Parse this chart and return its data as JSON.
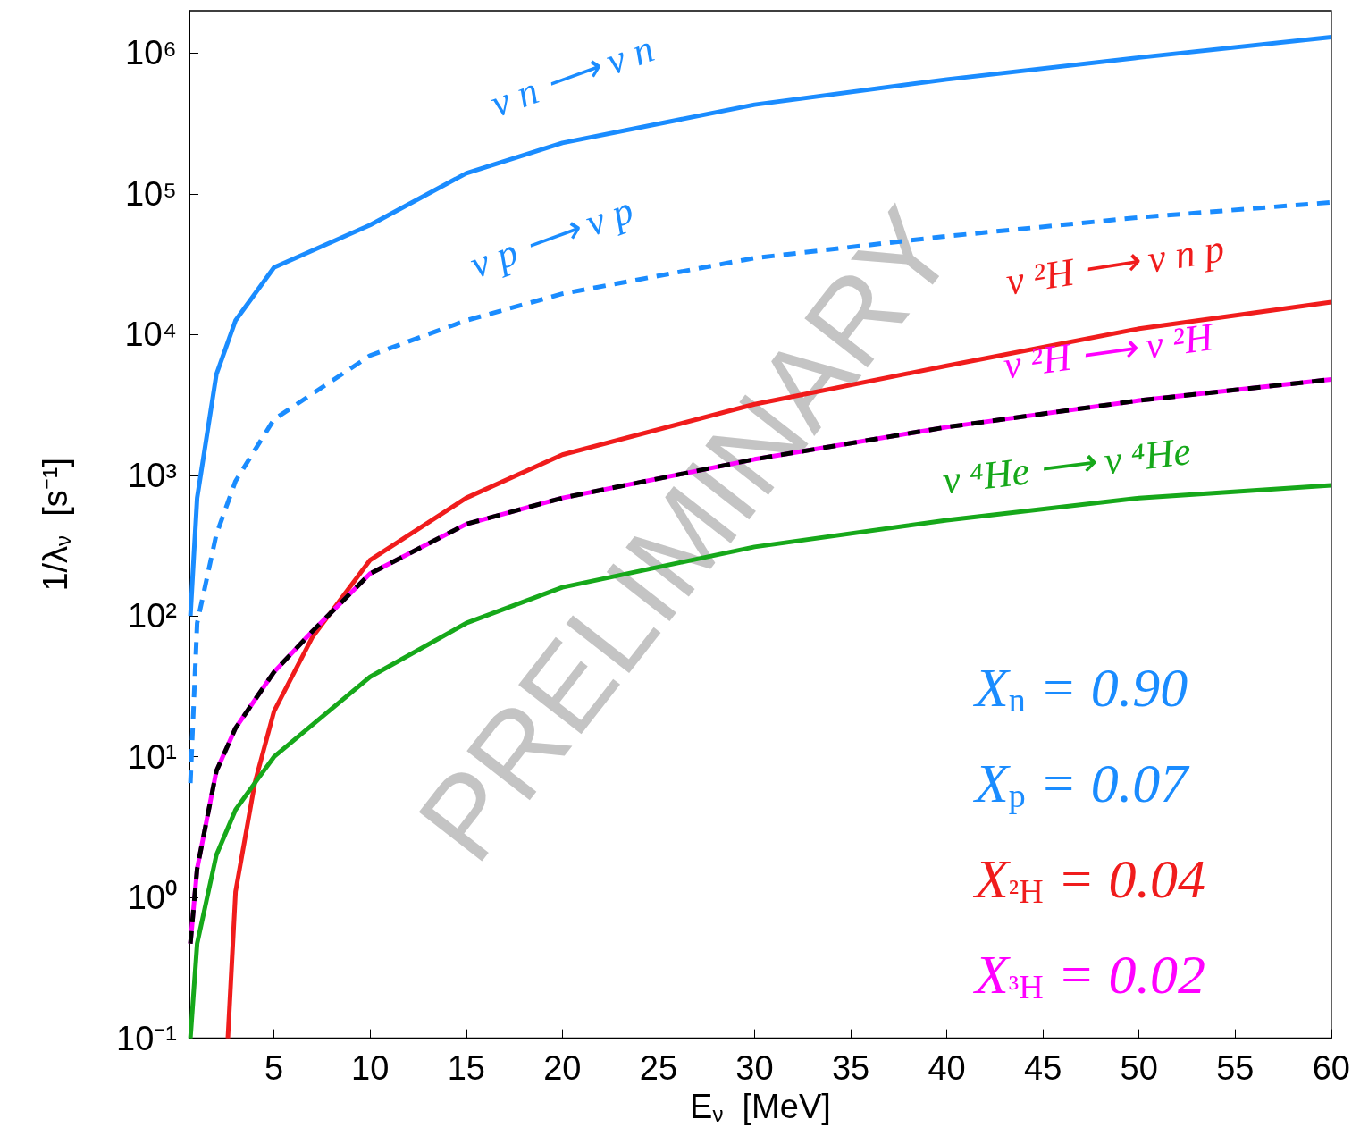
{
  "chart_data": {
    "type": "line",
    "xlabel": "E$_{ν}$  [MeV]",
    "ylabel": "1/λ$_{ν}$  [s⁻¹]",
    "log": "y",
    "grid": false,
    "legend": false,
    "marker": "none",
    "xlim": [
      0.6,
      60
    ],
    "xticks": [
      5,
      10,
      15,
      20,
      25,
      30,
      35,
      40,
      45,
      50,
      55,
      60
    ],
    "ylim": [
      0.1,
      2000000
    ],
    "yticks": [
      {
        "value": 0.1,
        "label": "10⁻¹"
      },
      {
        "value": 1,
        "label": "10⁰"
      },
      {
        "value": 10,
        "label": "10¹"
      },
      {
        "value": 100,
        "label": "10²"
      },
      {
        "value": 1000,
        "label": "10³"
      },
      {
        "value": 10000,
        "label": "10⁴"
      },
      {
        "value": 100000,
        "label": "10⁵"
      },
      {
        "value": 1000000,
        "label": "10⁶"
      }
    ],
    "series": [
      {
        "name": "ν n ⟶ ν n",
        "color": "#1a8cff",
        "line_style": "solid",
        "x": [
          0.65,
          1,
          2,
          3,
          5,
          10,
          15,
          20,
          30,
          40,
          50,
          60
        ],
        "values": [
          100,
          690,
          5200,
          12600,
          30000,
          60000,
          140000,
          230000,
          430000,
          650000,
          930000,
          1300000
        ]
      },
      {
        "name": "ν p ⟶ ν p",
        "color": "#1a8cff",
        "line_style": "dashed",
        "x": [
          0.65,
          1,
          2,
          3,
          5,
          10,
          15,
          20,
          30,
          40,
          50,
          60
        ],
        "values": [
          6.5,
          89,
          380,
          910,
          2500,
          7100,
          12600,
          19500,
          35000,
          50000,
          68000,
          87000
        ]
      },
      {
        "name": "ν ²H ⟶ ν n p",
        "color": "#f01c1c",
        "line_style": "solid",
        "x": [
          2.6,
          3,
          4,
          5,
          7,
          10,
          15,
          20,
          30,
          40,
          50,
          60
        ],
        "values": [
          0.1,
          1.1,
          6.5,
          21,
          71,
          250,
          690,
          1400,
          3200,
          6000,
          11000,
          17000
        ]
      },
      {
        "name": "ν ²H ⟶ ν ²H",
        "color": "#ff00ff",
        "line_style": "solid",
        "x": [
          0.65,
          1,
          2,
          3,
          5,
          7,
          10,
          15,
          20,
          30,
          40,
          50,
          60
        ],
        "values": [
          0.47,
          1.6,
          7.9,
          16,
          40,
          78,
          200,
          450,
          690,
          1300,
          2200,
          3400,
          4800
        ]
      },
      {
        "color": "#000000",
        "line_style": "dashed",
        "x": [
          0.65,
          1,
          2,
          3,
          5,
          7,
          10,
          15,
          20,
          30,
          40,
          50,
          60
        ],
        "values": [
          0.47,
          1.6,
          7.9,
          16,
          40,
          78,
          200,
          450,
          690,
          1300,
          2200,
          3400,
          4800
        ]
      },
      {
        "name": "ν ⁴He ⟶ ν ⁴He",
        "color": "#16a81a",
        "line_style": "solid",
        "x": [
          0.65,
          1,
          2,
          3,
          4,
          5,
          10,
          15,
          20,
          30,
          40,
          50,
          60
        ],
        "values": [
          0.1,
          0.47,
          2,
          4.2,
          6.5,
          10,
          37,
          89,
          160,
          310,
          480,
          690,
          850
        ]
      }
    ],
    "annotations": [
      "X$_{n}$ = 0.90",
      "X$_{p}$ = 0.07",
      "X$_{²H}$ = 0.04",
      "X$_{³H}$ = 0.02",
      "PRELIMINARY"
    ]
  }
}
